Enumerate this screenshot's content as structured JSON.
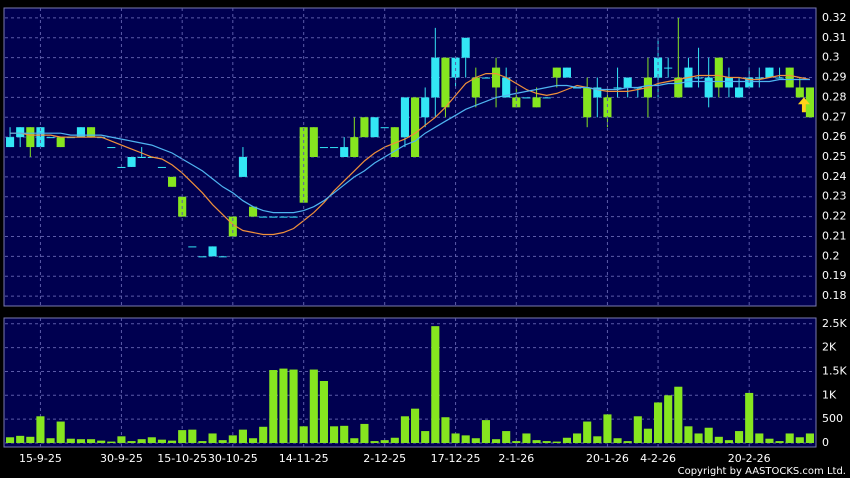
{
  "chart_data": [
    {
      "type": "candlestick",
      "up_color": "#33e6f5",
      "down_color": "#86e51f",
      "ylim": [
        0.175,
        0.325
      ],
      "yticks": [
        0.18,
        0.19,
        0.2,
        0.21,
        0.22,
        0.23,
        0.24,
        0.25,
        0.26,
        0.27,
        0.28,
        0.29,
        0.3,
        0.31,
        0.32
      ],
      "grid": true,
      "open": [
        0.255,
        0.26,
        0.265,
        0.255,
        0.26,
        0.26,
        0.26,
        0.26,
        0.265,
        0.26,
        0.255,
        0.245,
        0.245,
        0.25,
        0.25,
        0.245,
        0.24,
        0.23,
        0.205,
        0.2,
        0.2,
        0.2,
        0.22,
        0.24,
        0.225,
        0.22,
        0.22,
        0.22,
        0.22,
        0.265,
        0.265,
        0.255,
        0.255,
        0.25,
        0.26,
        0.27,
        0.26,
        0.265,
        0.265,
        0.26,
        0.28,
        0.27,
        0.28,
        0.3,
        0.29,
        0.3,
        0.29,
        0.29,
        0.295,
        0.28,
        0.28,
        0.28,
        0.28,
        0.28,
        0.295,
        0.29,
        0.285,
        0.285,
        0.28,
        0.28,
        0.285,
        0.285,
        0.285,
        0.29,
        0.29,
        0.295,
        0.29,
        0.285,
        0.29,
        0.28,
        0.3,
        0.285,
        0.28,
        0.285,
        0.29,
        0.29,
        0.29,
        0.295,
        0.285,
        0.285
      ],
      "high": [
        0.265,
        0.265,
        0.265,
        0.265,
        0.26,
        0.26,
        0.26,
        0.265,
        0.265,
        0.26,
        0.255,
        0.245,
        0.25,
        0.255,
        0.25,
        0.245,
        0.24,
        0.23,
        0.205,
        0.2,
        0.205,
        0.2,
        0.22,
        0.255,
        0.225,
        0.22,
        0.22,
        0.22,
        0.22,
        0.265,
        0.265,
        0.255,
        0.255,
        0.26,
        0.27,
        0.27,
        0.27,
        0.265,
        0.265,
        0.28,
        0.28,
        0.285,
        0.315,
        0.3,
        0.3,
        0.31,
        0.295,
        0.29,
        0.3,
        0.295,
        0.285,
        0.28,
        0.285,
        0.28,
        0.295,
        0.295,
        0.285,
        0.29,
        0.29,
        0.285,
        0.295,
        0.29,
        0.285,
        0.3,
        0.31,
        0.3,
        0.32,
        0.3,
        0.305,
        0.3,
        0.3,
        0.295,
        0.29,
        0.295,
        0.295,
        0.295,
        0.295,
        0.295,
        0.29,
        0.285
      ],
      "low": [
        0.255,
        0.255,
        0.25,
        0.255,
        0.26,
        0.255,
        0.26,
        0.26,
        0.26,
        0.26,
        0.255,
        0.245,
        0.245,
        0.25,
        0.25,
        0.245,
        0.235,
        0.22,
        0.205,
        0.2,
        0.2,
        0.2,
        0.21,
        0.24,
        0.22,
        0.22,
        0.22,
        0.22,
        0.22,
        0.227,
        0.25,
        0.255,
        0.255,
        0.25,
        0.25,
        0.26,
        0.26,
        0.265,
        0.25,
        0.255,
        0.25,
        0.265,
        0.27,
        0.27,
        0.285,
        0.29,
        0.275,
        0.29,
        0.275,
        0.28,
        0.275,
        0.28,
        0.275,
        0.28,
        0.285,
        0.29,
        0.285,
        0.265,
        0.27,
        0.265,
        0.28,
        0.28,
        0.28,
        0.27,
        0.28,
        0.29,
        0.28,
        0.285,
        0.285,
        0.275,
        0.28,
        0.28,
        0.28,
        0.285,
        0.285,
        0.29,
        0.29,
        0.285,
        0.28,
        0.27
      ],
      "close": [
        0.26,
        0.265,
        0.255,
        0.265,
        0.26,
        0.255,
        0.26,
        0.265,
        0.26,
        0.26,
        0.255,
        0.245,
        0.25,
        0.25,
        0.25,
        0.245,
        0.235,
        0.22,
        0.205,
        0.2,
        0.205,
        0.2,
        0.21,
        0.25,
        0.22,
        0.22,
        0.22,
        0.22,
        0.22,
        0.227,
        0.25,
        0.255,
        0.255,
        0.255,
        0.25,
        0.26,
        0.27,
        0.265,
        0.25,
        0.28,
        0.25,
        0.28,
        0.3,
        0.275,
        0.3,
        0.31,
        0.28,
        0.29,
        0.285,
        0.29,
        0.275,
        0.28,
        0.275,
        0.28,
        0.29,
        0.295,
        0.285,
        0.27,
        0.285,
        0.27,
        0.285,
        0.29,
        0.285,
        0.28,
        0.3,
        0.295,
        0.28,
        0.295,
        0.29,
        0.29,
        0.285,
        0.29,
        0.285,
        0.29,
        0.29,
        0.295,
        0.29,
        0.285,
        0.28,
        0.27
      ],
      "lines": [
        {
          "color": "#f0903a",
          "values": [
            0.262,
            0.262,
            0.261,
            0.261,
            0.261,
            0.26,
            0.26,
            0.26,
            0.26,
            0.26,
            0.258,
            0.256,
            0.254,
            0.252,
            0.25,
            0.249,
            0.246,
            0.242,
            0.237,
            0.232,
            0.226,
            0.221,
            0.216,
            0.213,
            0.212,
            0.211,
            0.211,
            0.212,
            0.214,
            0.218,
            0.222,
            0.227,
            0.233,
            0.238,
            0.243,
            0.248,
            0.252,
            0.255,
            0.257,
            0.259,
            0.262,
            0.266,
            0.27,
            0.275,
            0.281,
            0.287,
            0.29,
            0.292,
            0.292,
            0.29,
            0.287,
            0.284,
            0.282,
            0.281,
            0.282,
            0.284,
            0.286,
            0.285,
            0.284,
            0.283,
            0.283,
            0.283,
            0.284,
            0.285,
            0.287,
            0.288,
            0.289,
            0.29,
            0.291,
            0.291,
            0.291,
            0.29,
            0.29,
            0.289,
            0.289,
            0.29,
            0.291,
            0.291,
            0.29,
            0.289
          ]
        },
        {
          "color": "#4fb4f0",
          "values": [
            0.262,
            0.262,
            0.262,
            0.262,
            0.262,
            0.262,
            0.261,
            0.261,
            0.261,
            0.261,
            0.26,
            0.259,
            0.258,
            0.257,
            0.256,
            0.254,
            0.252,
            0.249,
            0.246,
            0.243,
            0.239,
            0.235,
            0.232,
            0.228,
            0.225,
            0.223,
            0.222,
            0.222,
            0.222,
            0.223,
            0.225,
            0.228,
            0.232,
            0.236,
            0.24,
            0.243,
            0.247,
            0.25,
            0.253,
            0.256,
            0.258,
            0.262,
            0.265,
            0.268,
            0.271,
            0.274,
            0.276,
            0.278,
            0.28,
            0.281,
            0.282,
            0.283,
            0.284,
            0.285,
            0.286,
            0.286,
            0.285,
            0.285,
            0.284,
            0.284,
            0.284,
            0.285,
            0.285,
            0.286,
            0.286,
            0.287,
            0.287,
            0.288,
            0.288,
            0.288,
            0.288,
            0.288,
            0.288,
            0.288,
            0.288,
            0.288,
            0.289,
            0.289,
            0.289,
            0.289
          ]
        }
      ]
    },
    {
      "type": "bar",
      "color": "#86e51f",
      "categories": [
        null,
        null,
        null,
        "15-9-25",
        null,
        null,
        null,
        null,
        null,
        null,
        null,
        "30-9-25",
        null,
        null,
        null,
        null,
        null,
        "15-10-25",
        null,
        null,
        null,
        null,
        "30-10-25",
        null,
        null,
        null,
        null,
        null,
        null,
        "14-11-25",
        null,
        null,
        null,
        null,
        null,
        null,
        null,
        "2-12-25",
        null,
        null,
        null,
        null,
        null,
        null,
        "17-12-25",
        null,
        null,
        null,
        null,
        null,
        "2-1-26",
        null,
        null,
        null,
        null,
        null,
        null,
        null,
        null,
        "20-1-26",
        null,
        null,
        null,
        null,
        "4-2-26",
        null,
        null,
        null,
        null,
        null,
        null,
        null,
        null,
        "20-2-26",
        null,
        null,
        null,
        null,
        null,
        null
      ],
      "values": [
        120,
        150,
        130,
        560,
        100,
        450,
        90,
        80,
        80,
        50,
        30,
        140,
        40,
        80,
        120,
        70,
        50,
        270,
        280,
        40,
        200,
        60,
        160,
        280,
        100,
        340,
        1530,
        1560,
        1540,
        350,
        1540,
        1300,
        350,
        360,
        100,
        400,
        40,
        60,
        110,
        560,
        720,
        250,
        2450,
        540,
        200,
        160,
        100,
        480,
        80,
        250,
        40,
        200,
        60,
        40,
        30,
        110,
        200,
        450,
        140,
        600,
        100,
        40,
        560,
        300,
        850,
        1000,
        1180,
        350,
        200,
        320,
        130,
        60,
        250,
        1050,
        200,
        90,
        40,
        200,
        120,
        200
      ],
      "ylim": [
        0,
        2600
      ],
      "yticks": [
        0,
        500,
        {
          "value": 1000,
          "label": "1K"
        },
        {
          "value": 1500,
          "label": "1.5K"
        },
        {
          "value": 2000,
          "label": "2K"
        },
        {
          "value": 2500,
          "label": "2.5K"
        }
      ],
      "grid": true
    }
  ],
  "copyright": "Copyright by AASTOCKS.com Ltd."
}
